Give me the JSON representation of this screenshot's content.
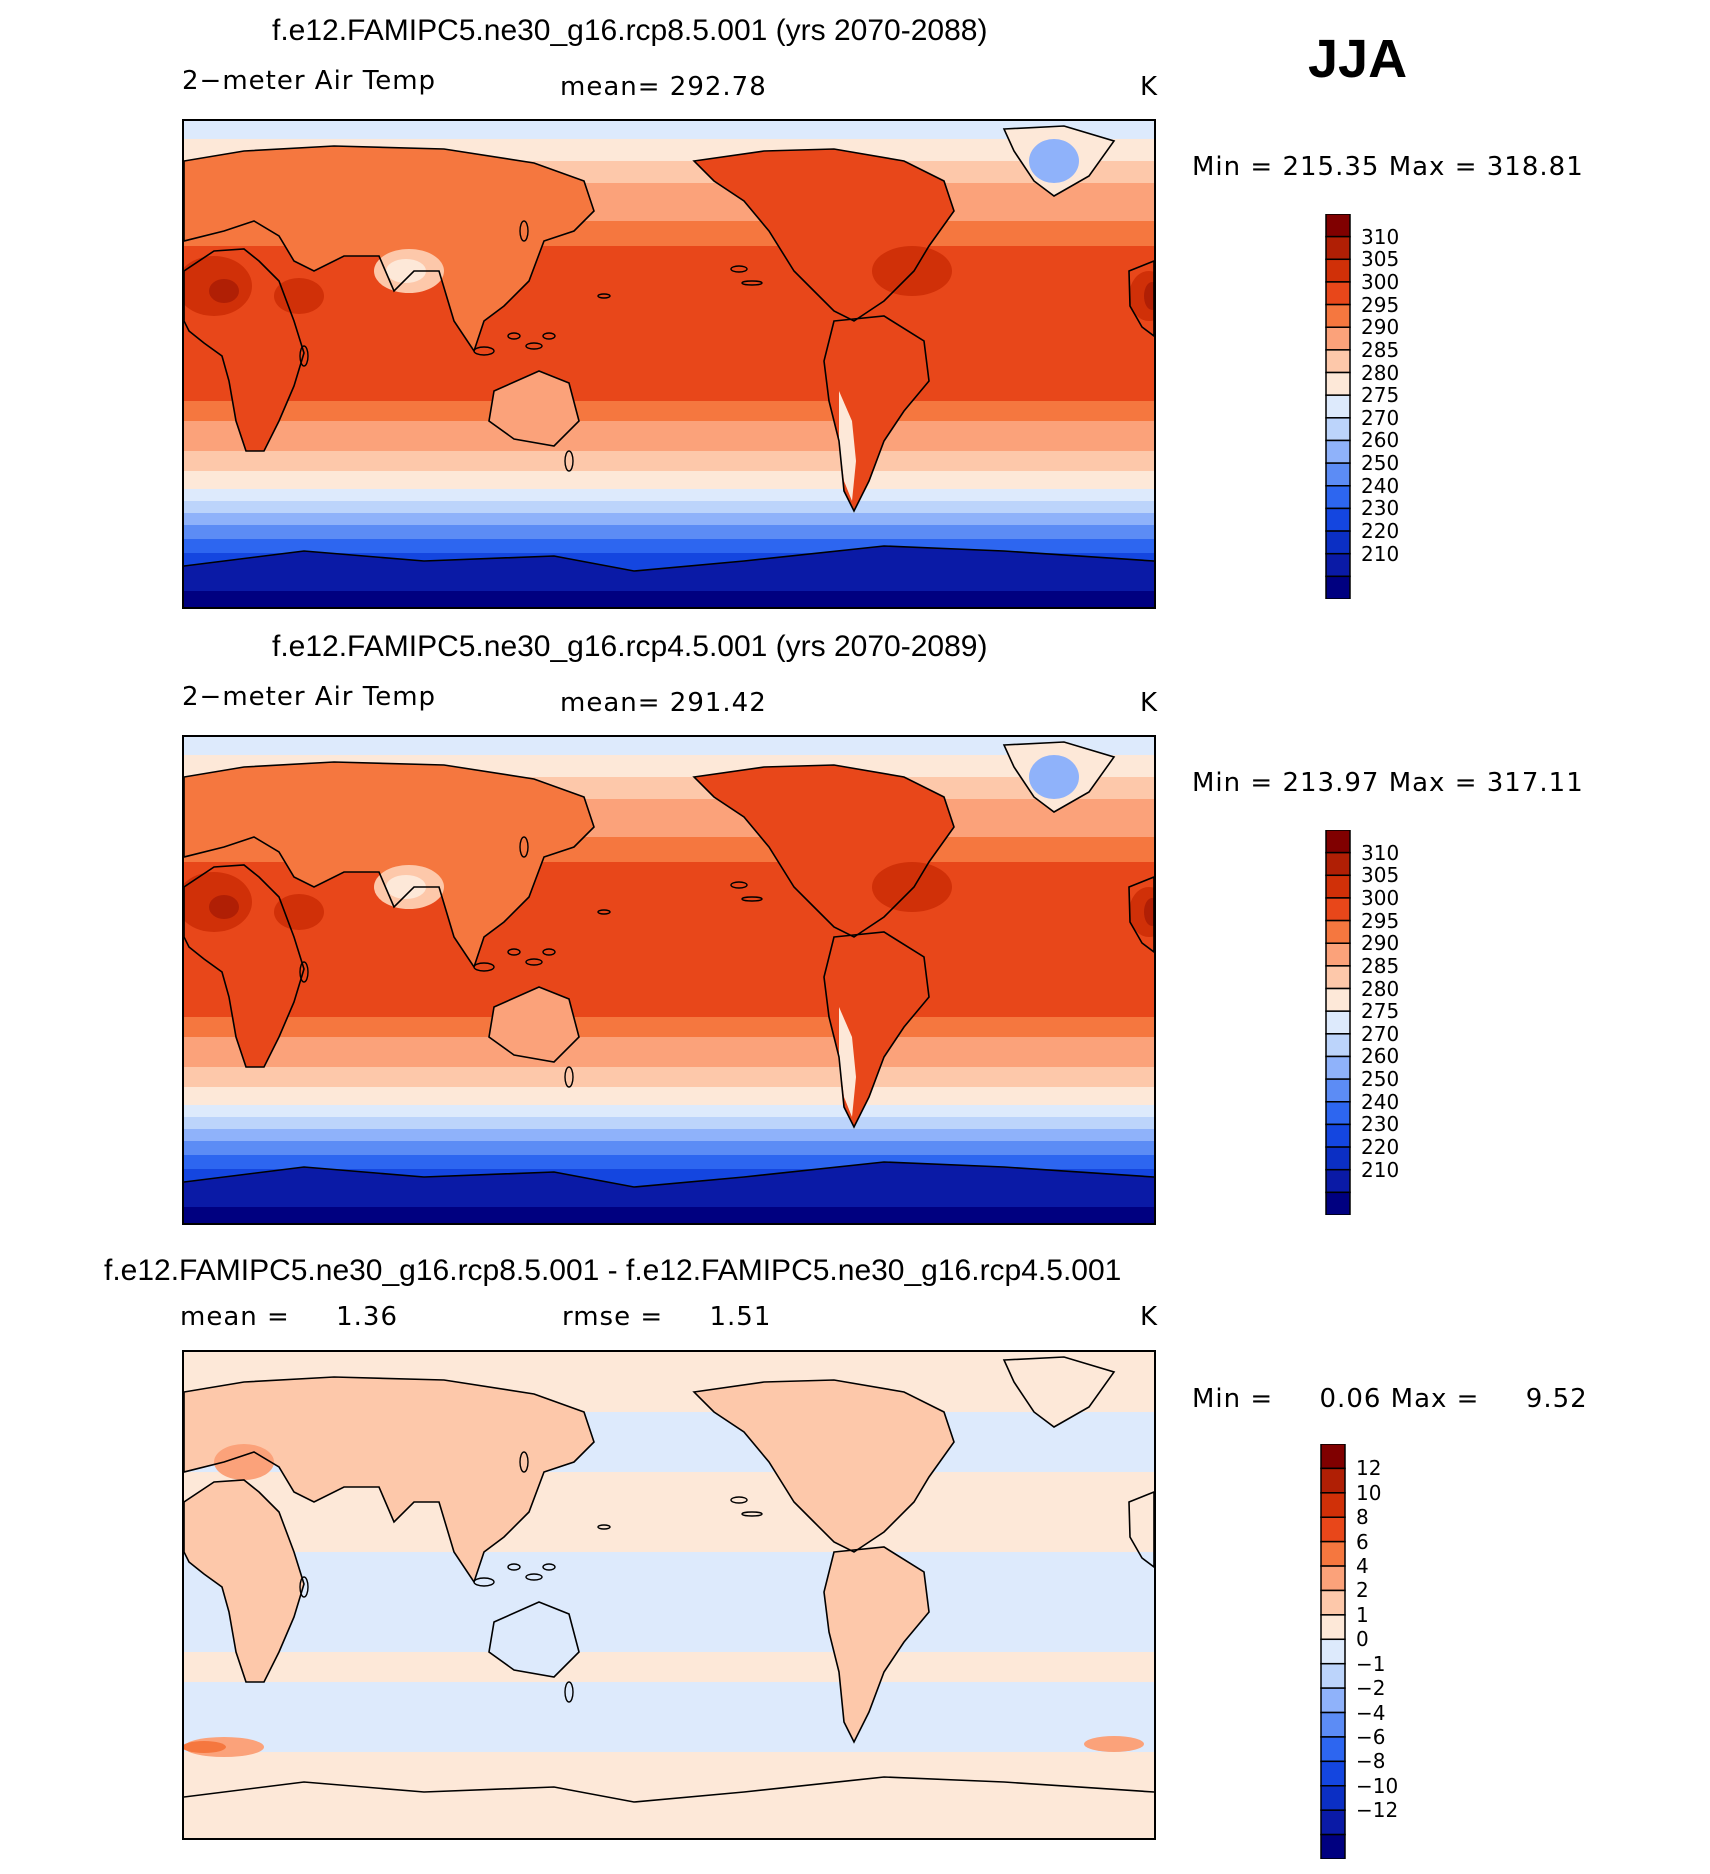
{
  "season": "JJA",
  "chart_data": [
    {
      "type": "heatmap",
      "title": "f.e12.FAMIPC5.ne30_g16.rcp8.5.001 (yrs 2070-2088)",
      "left_label": "2−meter Air Temp",
      "center_label": "mean= 292.78",
      "units": "K",
      "stats": "Min = 215.35 Max = 318.81",
      "min": 215.35,
      "max": 318.81,
      "levels": [
        210,
        220,
        230,
        240,
        250,
        260,
        270,
        275,
        280,
        285,
        290,
        295,
        300,
        305,
        310
      ],
      "level_labels": [
        "310",
        "305",
        "300",
        "295",
        "290",
        "285",
        "280",
        "275",
        "270",
        "260",
        "250",
        "240",
        "230",
        "220",
        "210"
      ],
      "colors": [
        "#000080",
        "#0a1aa6",
        "#0b2fc4",
        "#1446e0",
        "#2d66f0",
        "#5c8cf5",
        "#8fb2fa",
        "#bcd4fb",
        "#ddeafc",
        "#fde8d8",
        "#fdc8aa",
        "#fba27a",
        "#f5773f",
        "#e8471a",
        "#d03008",
        "#b01f05",
        "#800000"
      ]
    },
    {
      "type": "heatmap",
      "title": "f.e12.FAMIPC5.ne30_g16.rcp4.5.001 (yrs 2070-2089)",
      "left_label": "2−meter Air Temp",
      "center_label": "mean= 291.42",
      "units": "K",
      "stats": "Min = 213.97 Max = 317.11",
      "min": 213.97,
      "max": 317.11,
      "levels": [
        210,
        220,
        230,
        240,
        250,
        260,
        270,
        275,
        280,
        285,
        290,
        295,
        300,
        305,
        310
      ],
      "level_labels": [
        "310",
        "305",
        "300",
        "295",
        "290",
        "285",
        "280",
        "275",
        "270",
        "260",
        "250",
        "240",
        "230",
        "220",
        "210"
      ],
      "colors": [
        "#000080",
        "#0a1aa6",
        "#0b2fc4",
        "#1446e0",
        "#2d66f0",
        "#5c8cf5",
        "#8fb2fa",
        "#bcd4fb",
        "#ddeafc",
        "#fde8d8",
        "#fdc8aa",
        "#fba27a",
        "#f5773f",
        "#e8471a",
        "#d03008",
        "#b01f05",
        "#800000"
      ]
    },
    {
      "type": "heatmap",
      "title": "f.e12.FAMIPC5.ne30_g16.rcp8.5.001 - f.e12.FAMIPC5.ne30_g16.rcp4.5.001",
      "left_label": "mean =     1.36",
      "center_label": "rmse =     1.51",
      "units": "K",
      "stats": "Min =     0.06 Max =     9.52",
      "min": 0.06,
      "max": 9.52,
      "levels": [
        -12,
        -10,
        -8,
        -6,
        -4,
        -2,
        -1,
        0,
        1,
        2,
        4,
        6,
        8,
        10,
        12
      ],
      "level_labels": [
        "12",
        "10",
        "8",
        "6",
        "4",
        "2",
        "1",
        "0",
        "−1",
        "−2",
        "−4",
        "−6",
        "−8",
        "−10",
        "−12"
      ],
      "colors": [
        "#000080",
        "#0a1aa6",
        "#0b2fc4",
        "#1446e0",
        "#2d66f0",
        "#5c8cf5",
        "#8fb2fa",
        "#bcd4fb",
        "#ddeafc",
        "#fde8d8",
        "#fdc8aa",
        "#fba27a",
        "#f5773f",
        "#e8471a",
        "#d03008",
        "#b01f05",
        "#800000"
      ]
    }
  ]
}
